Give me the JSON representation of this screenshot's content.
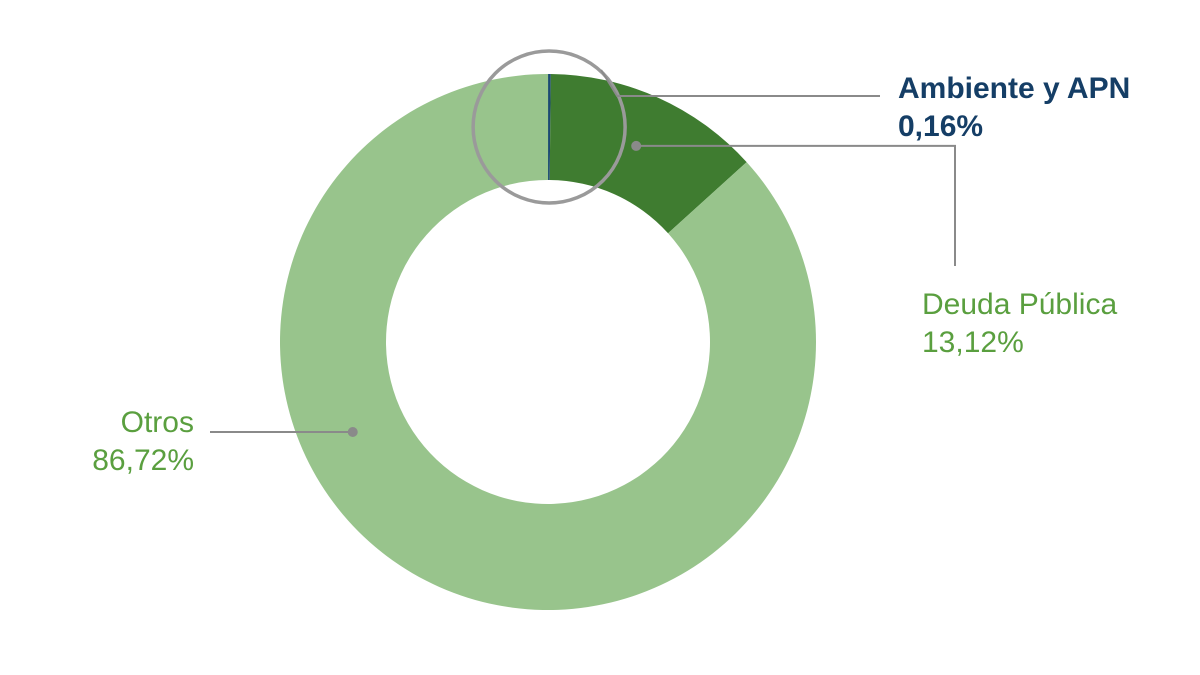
{
  "chart_data": {
    "type": "pie",
    "variant": "donut",
    "start_angle_deg": 0,
    "direction": "clockwise",
    "slices": [
      {
        "key": "ambiente",
        "label": "Ambiente y APN",
        "value": 0.16,
        "value_label": "0,16%",
        "color": "#1c4a73"
      },
      {
        "key": "deuda",
        "label": "Deuda Pública",
        "value": 13.12,
        "value_label": "13,12%",
        "color": "#3f7c30"
      },
      {
        "key": "otros",
        "label": "Otros",
        "value": 86.72,
        "value_label": "86,72%",
        "color": "#98c48c"
      }
    ],
    "highlight": "ambiente",
    "colors": {
      "leader": "#8a8a8a",
      "highlight_ring": "#9a9a9a",
      "label_dark": "#153e66",
      "label_green": "#5a9f3f"
    }
  }
}
